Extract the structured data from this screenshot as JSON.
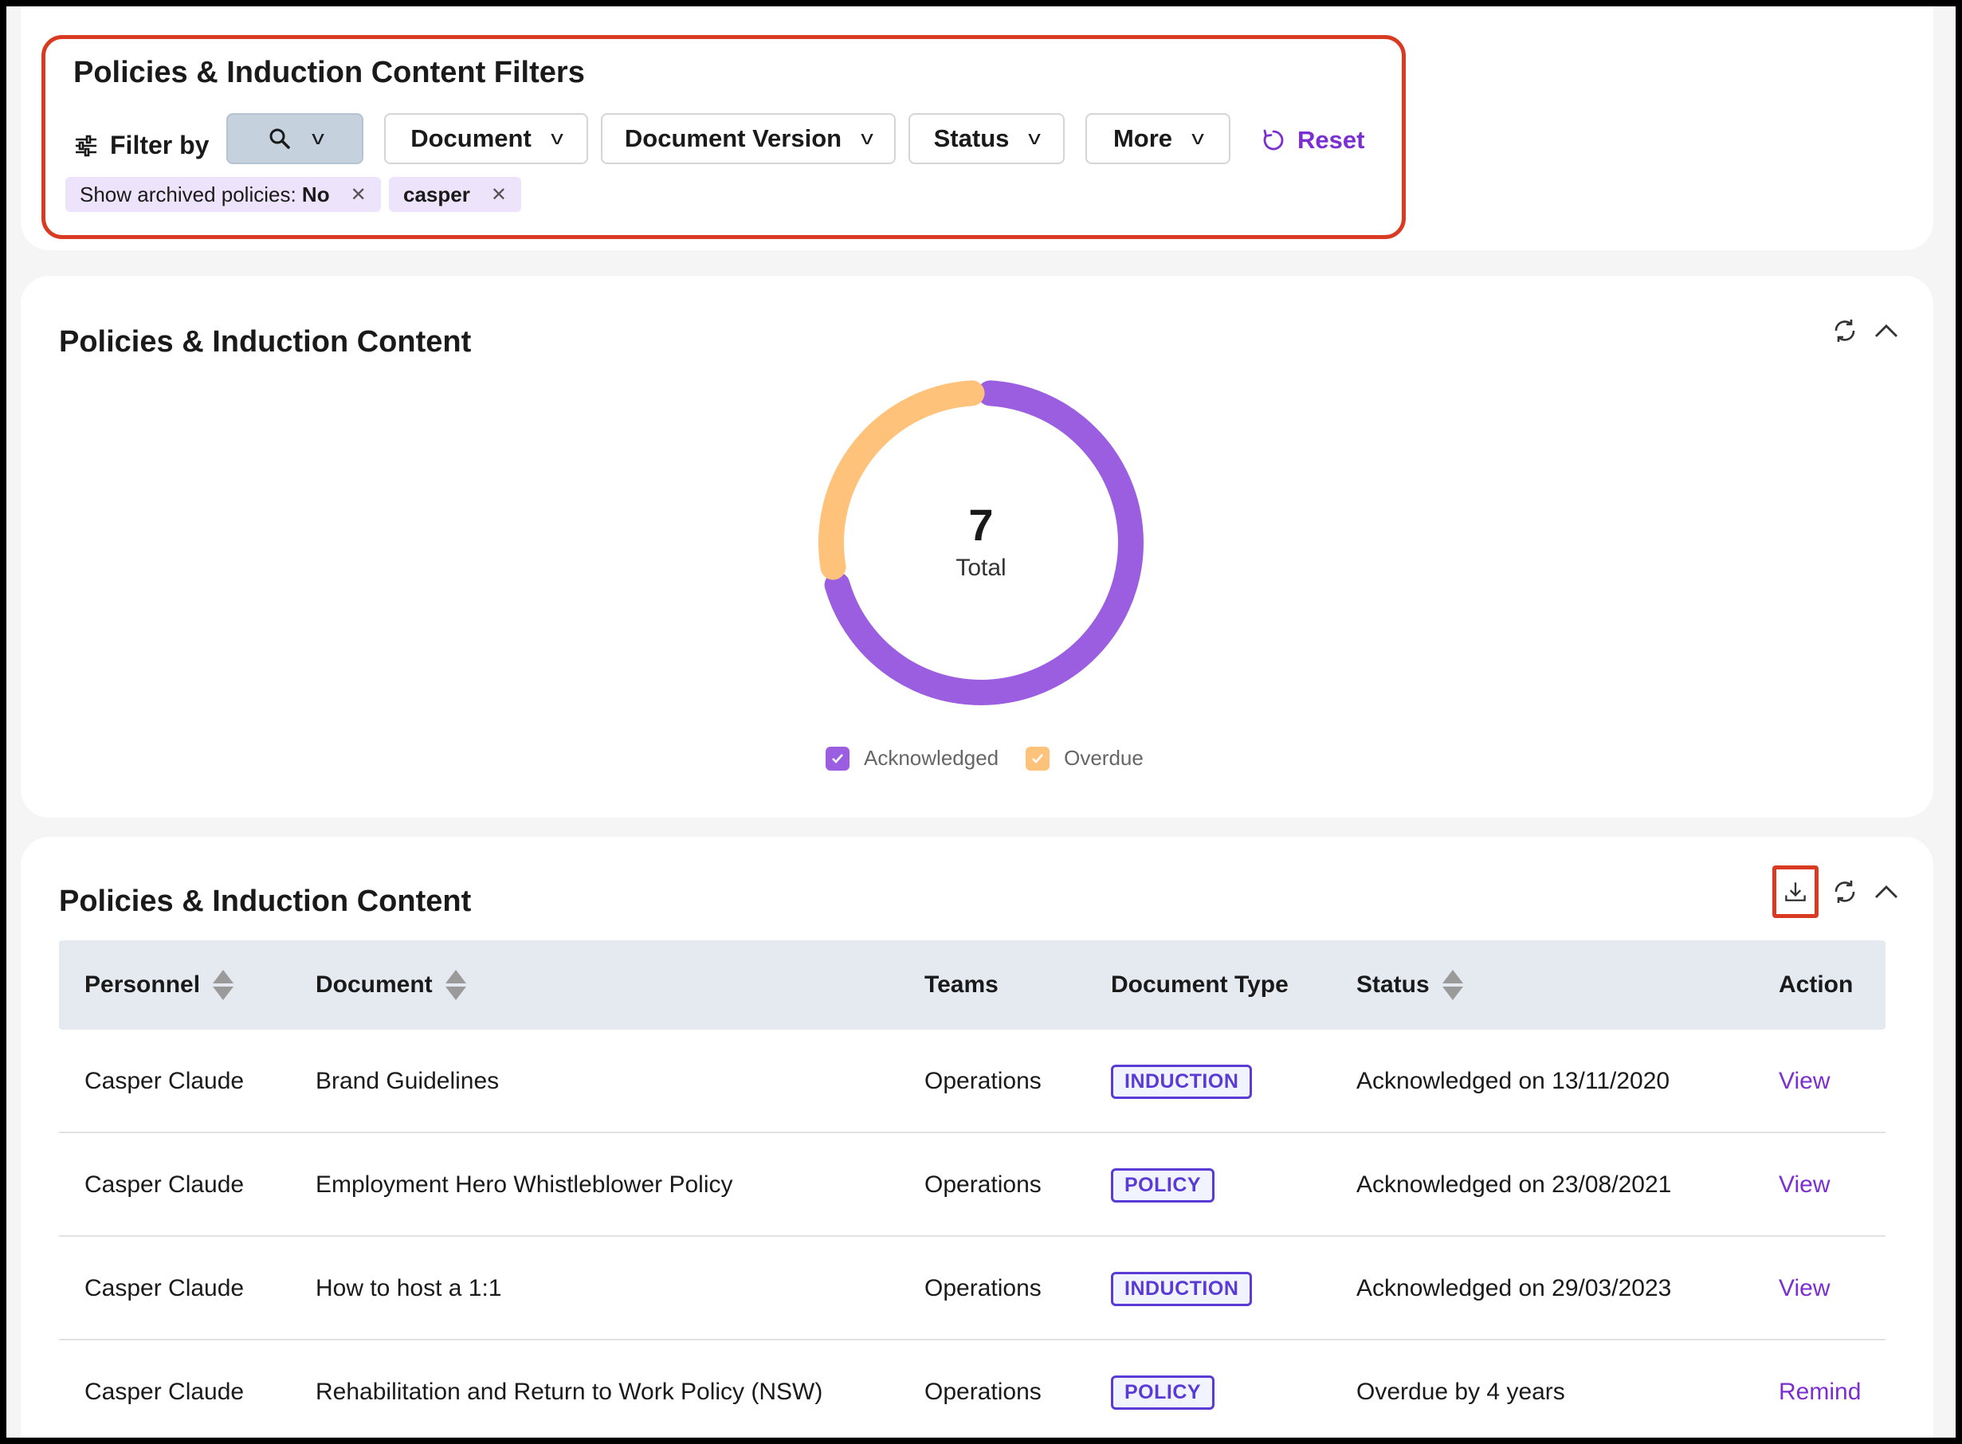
{
  "filters": {
    "title": "Policies & Induction Content Filters",
    "filter_by_label": "Filter by",
    "buttons": [
      {
        "label": "Document"
      },
      {
        "label": "Document Version"
      },
      {
        "label": "Status"
      },
      {
        "label": "More"
      }
    ],
    "reset_label": "Reset",
    "chips": [
      {
        "prefix": "Show archived policies: ",
        "value": "No"
      },
      {
        "prefix": "",
        "value": "casper"
      }
    ]
  },
  "chart_section": {
    "title": "Policies & Induction Content",
    "total_value": "7",
    "total_label": "Total"
  },
  "chart_data": {
    "type": "pie",
    "style": "donut",
    "center_value": 7,
    "center_label": "Total",
    "categories": [
      "Acknowledged",
      "Overdue"
    ],
    "values": [
      5,
      2
    ],
    "colors": [
      "#9c5ee0",
      "#ffc27a"
    ],
    "legend": "bottom"
  },
  "table_section": {
    "title": "Policies & Induction Content",
    "columns": [
      "Personnel",
      "Document",
      "Teams",
      "Document Type",
      "Status",
      "Action"
    ],
    "rows": [
      {
        "personnel": "Casper Claude",
        "document": "Brand Guidelines",
        "teams": "Operations",
        "type": "INDUCTION",
        "status": "Acknowledged on 13/11/2020",
        "action": "View"
      },
      {
        "personnel": "Casper Claude",
        "document": "Employment Hero Whistleblower Policy",
        "teams": "Operations",
        "type": "POLICY",
        "status": "Acknowledged on 23/08/2021",
        "action": "View"
      },
      {
        "personnel": "Casper Claude",
        "document": "How to host a 1:1",
        "teams": "Operations",
        "type": "INDUCTION",
        "status": "Acknowledged on 29/03/2023",
        "action": "View"
      },
      {
        "personnel": "Casper Claude",
        "document": "Rehabilitation and Return to Work Policy (NSW)",
        "teams": "Operations",
        "type": "POLICY",
        "status": "Overdue by 4 years",
        "action": "Remind"
      }
    ]
  },
  "colors": {
    "accent": "#7b2fd0",
    "highlight": "#d83a22",
    "acknowledged": "#9c5ee0",
    "overdue": "#ffc27a"
  }
}
